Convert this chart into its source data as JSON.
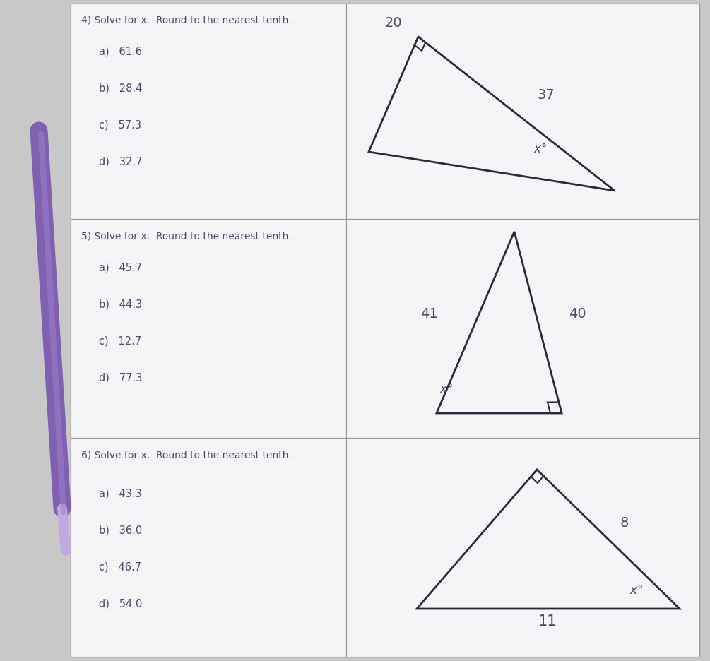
{
  "bg_color": "#c8c8c8",
  "paper_color": "#f0f0f0",
  "cell_color": "#f5f5f8",
  "border_color": "#999999",
  "text_color": "#4a4a6a",
  "line_color": "#2a2a3a",
  "section4": {
    "title": "4) Solve for x.  Round to the nearest tenth.",
    "options": [
      "a)   61.6",
      "b)   28.4",
      "c)   57.3",
      "d)   32.7"
    ]
  },
  "section5": {
    "title": "5) Solve for x.  Round to the nearest tenth.",
    "options": [
      "a)   45.7",
      "b)   44.3",
      "c)   12.7",
      "d)   77.3"
    ]
  },
  "section6": {
    "title": "6) Solve for x.  Round to the nearest tenth.",
    "options": [
      "a)   43.3",
      "b)   36.0",
      "c)   46.7",
      "d)   54.0"
    ]
  }
}
